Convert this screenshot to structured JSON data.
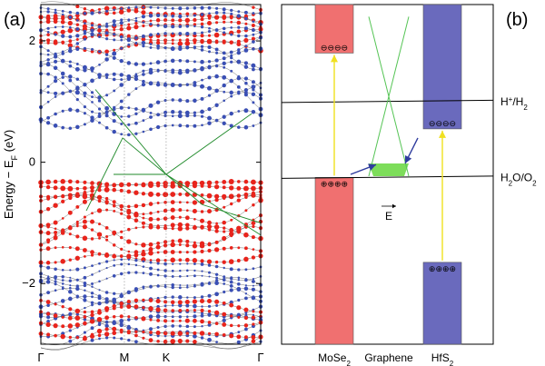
{
  "chart_data": [
    {
      "type": "scatter",
      "panel_label": "(a)",
      "title": "",
      "xlabel": "",
      "ylabel": "Energy − E",
      "ylabel_sub": "F",
      "ylabel_unit": " (eV)",
      "ylim": [
        -3.0,
        2.6
      ],
      "y_ticks": [
        {
          "value": 2,
          "label": "2"
        },
        {
          "value": 0,
          "label": "0"
        },
        {
          "value": -2,
          "label": "−2"
        }
      ],
      "x_ticks": [
        {
          "pos": 0.0,
          "label": "Γ"
        },
        {
          "pos": 0.38,
          "label": "M"
        },
        {
          "pos": 0.57,
          "label": "K"
        },
        {
          "pos": 1.0,
          "label": "Γ"
        }
      ],
      "series": [
        {
          "name": "MoSe2 states",
          "color": "#e8241c"
        },
        {
          "name": "HfS2 states",
          "color": "#3a4fb4"
        },
        {
          "name": "graphene bands",
          "color": "#1f8a2a"
        }
      ],
      "dirac_point_eV": -0.2
    },
    {
      "type": "band-alignment",
      "panel_label": "(b)",
      "categories": [
        "MoSe2",
        "Graphene",
        "HfS2"
      ],
      "labels": [
        {
          "base": "MoSe",
          "sub": "2"
        },
        {
          "base": "Graphene",
          "sub": ""
        },
        {
          "base": "HfS",
          "sub": "2"
        }
      ],
      "bars": [
        {
          "name": "MoSe2 CB",
          "color": "#f07070",
          "lower": 1.8,
          "upper": 2.6
        },
        {
          "name": "MoSe2 VB",
          "color": "#f07070",
          "lower": -3.0,
          "upper": -0.25
        },
        {
          "name": "HfS2 CB",
          "color": "#6a6abd",
          "lower": 0.55,
          "upper": 2.6
        },
        {
          "name": "HfS2 VB",
          "color": "#6a6abd",
          "lower": -3.0,
          "upper": -1.65
        }
      ],
      "levels": [
        {
          "label": "H",
          "sup": "+",
          "rest": "/H",
          "sub": "2",
          "value": 1.0
        },
        {
          "label": "H",
          "sup": "",
          "rest": "",
          "sub": "2",
          "tail": "O/O",
          "tail_sub": "2",
          "value": -0.25
        }
      ],
      "charges": {
        "electrons": "⊖⊖⊖⊖",
        "holes": "⊕⊕⊕⊕"
      },
      "field_label": "E",
      "graphene_dirac_point_eV": -0.2
    }
  ]
}
